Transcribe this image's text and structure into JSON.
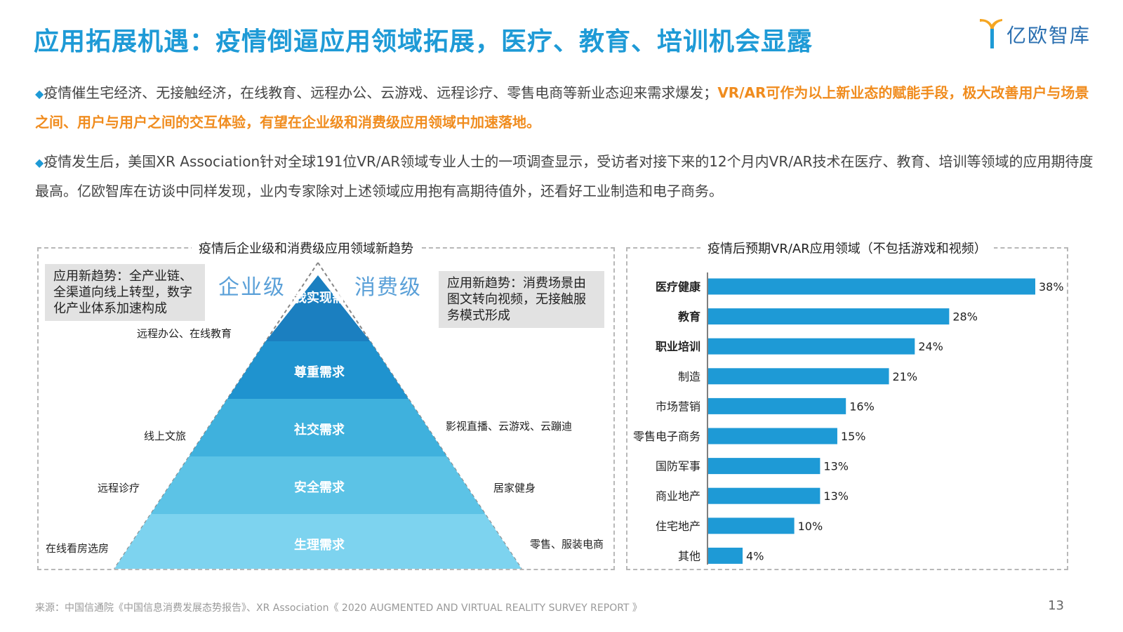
{
  "title": "应用拓展机遇：疫情倒逼应用领域拓展，医疗、教育、培训机会显露",
  "logo": {
    "text": "亿欧智库",
    "icon": "yiou-logo-icon"
  },
  "paragraph1": {
    "bullet": "◆",
    "normal": "疫情催生宅经济、无接触经济，在线教育、远程办公、云游戏、远程诊疗、零售电商等新业态迎来需求爆发；",
    "highlight": "VR/AR可作为以上新业态的赋能手段，极大改善用户与场景之间、用户与用户之间的交互体验，有望在企业级和消费级应用领域中加速落地。"
  },
  "paragraph2": {
    "bullet": "◆",
    "text": "疫情发生后，美国XR Association针对全球191位VR/AR领域专业人士的一项调查显示，受访者对接下来的12个月内VR/AR技术在医疗、教育、培训等领域的应用期待度最高。亿欧智库在访谈中同样发现，业内专家除对上述领域应用抱有高期待值外，还看好工业制造和电子商务。"
  },
  "left_panel": {
    "title": "疫情后企业级和消费级应用领域新趋势",
    "enterprise_label": "企业级",
    "consumer_label": "消费级",
    "enterprise_trend": "应用新趋势：全产业链、全渠道向线上转型，数字化产业体系加速构成",
    "consumer_trend": "应用新趋势：消费场景由图文转向视频，无接触服务模式形成",
    "pyramid_levels": [
      "自我实现需求",
      "尊重需求",
      "社交需求",
      "安全需求",
      "生理需求"
    ],
    "left_items": [
      "远程办公、在线教育",
      "线上文旅",
      "远程诊疗",
      "在线看房选房"
    ],
    "right_items": [
      "影视直播、云游戏、云蹦迪",
      "居家健身",
      "零售、服装电商"
    ],
    "colors": [
      "#1b7fc0",
      "#1f93cf",
      "#3fb1dd",
      "#5cc3e6",
      "#7dd3ef"
    ]
  },
  "chart_data": {
    "type": "bar",
    "orientation": "horizontal",
    "title": "疫情后预期VR/AR应用领域（不包括游戏和视频）",
    "categories": [
      "医疗健康",
      "教育",
      "职业培训",
      "制造",
      "市场营销",
      "零售电子商务",
      "国防军事",
      "商业地产",
      "住宅地产",
      "其他"
    ],
    "bold_categories": [
      "医疗健康",
      "教育",
      "职业培训"
    ],
    "values": [
      38,
      28,
      24,
      21,
      16,
      15,
      13,
      13,
      10,
      4
    ],
    "value_labels": [
      "38%",
      "28%",
      "24%",
      "21%",
      "16%",
      "15%",
      "13%",
      "13%",
      "10%",
      "4%"
    ],
    "xlim": [
      0,
      38
    ],
    "bar_color": "#1e9ad6",
    "grid": false
  },
  "footer": "来源：中国信通院《中国信息消费发展态势报告》、XR Association《 2020 AUGMENTED AND VIRTUAL REALITY SURVEY REPORT 》",
  "page_number": "13"
}
